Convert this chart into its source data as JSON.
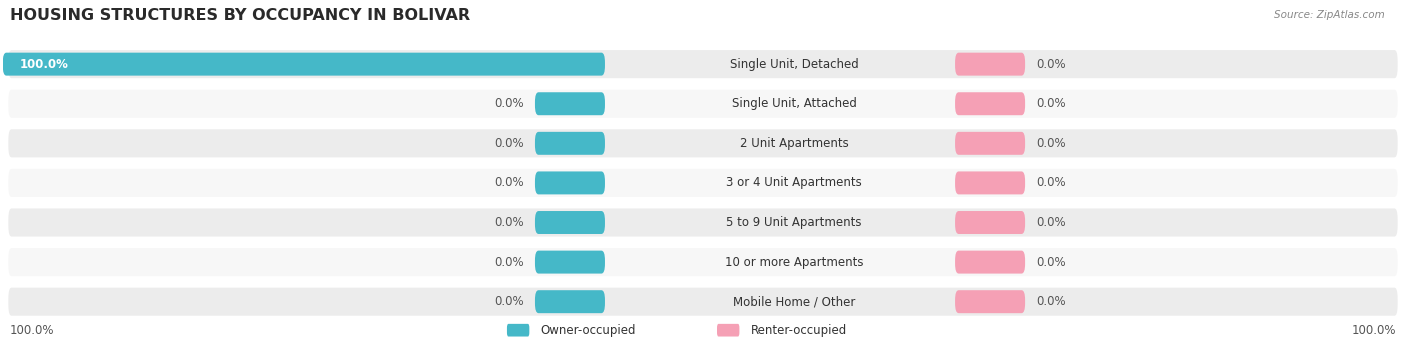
{
  "title": "HOUSING STRUCTURES BY OCCUPANCY IN BOLIVAR",
  "source": "Source: ZipAtlas.com",
  "categories": [
    "Single Unit, Detached",
    "Single Unit, Attached",
    "2 Unit Apartments",
    "3 or 4 Unit Apartments",
    "5 to 9 Unit Apartments",
    "10 or more Apartments",
    "Mobile Home / Other"
  ],
  "owner_values": [
    100.0,
    0.0,
    0.0,
    0.0,
    0.0,
    0.0,
    0.0
  ],
  "renter_values": [
    0.0,
    0.0,
    0.0,
    0.0,
    0.0,
    0.0,
    0.0
  ],
  "owner_color": "#45b8c8",
  "renter_color": "#f5a0b5",
  "row_bg_even": "#ececec",
  "row_bg_odd": "#f7f7f7",
  "title_color": "#2a2a2a",
  "text_color": "#555555",
  "legend_owner": "Owner-occupied",
  "legend_renter": "Renter-occupied",
  "bottom_left_label": "100.0%",
  "bottom_right_label": "100.0%",
  "fig_width": 14.06,
  "fig_height": 3.41
}
